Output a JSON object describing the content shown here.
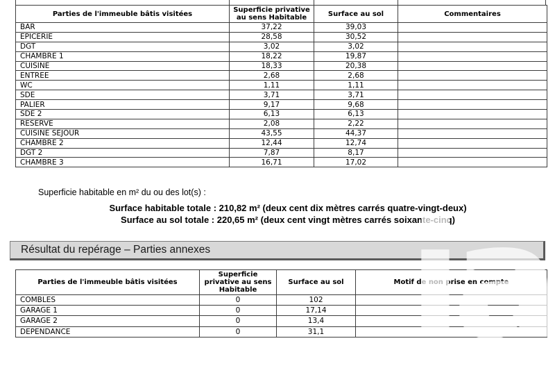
{
  "document": {
    "summary_intro": "Superficie habitable en m² du ou des lot(s) :",
    "total_line1": "Surface habitable totale : 210,82 m² (deux cent dix mètres carrés quatre-vingt-deux)",
    "total_line2": "Surface au sol totale : 220,65 m² (deux cent vingt mètres carrés soixante-cinq)",
    "section_title": "Résultat du repérage – Parties annexes"
  },
  "tables": {
    "main": {
      "headers": [
        "Parties de l'immeuble bâtis visitées",
        "Superficie privative au sens Habitable",
        "Surface au sol",
        "Commentaires"
      ],
      "rows": [
        [
          "BAR",
          "37,22",
          "39,03",
          ""
        ],
        [
          "EPICERIE",
          "28,58",
          "30,52",
          ""
        ],
        [
          "DGT",
          "3,02",
          "3,02",
          ""
        ],
        [
          "CHAMBRE 1",
          "18,22",
          "19,87",
          ""
        ],
        [
          "CUISINE",
          "18,33",
          "20,38",
          ""
        ],
        [
          "ENTREE",
          "2,68",
          "2,68",
          ""
        ],
        [
          "WC",
          "1,11",
          "1,11",
          ""
        ],
        [
          "SDE",
          "3,71",
          "3,71",
          ""
        ],
        [
          "PALIER",
          "9,17",
          "9,68",
          ""
        ],
        [
          "SDE 2",
          "6,13",
          "6,13",
          ""
        ],
        [
          "RESERVE",
          "2,08",
          "2,22",
          ""
        ],
        [
          "CUISINE SEJOUR",
          "43,55",
          "44,37",
          ""
        ],
        [
          "CHAMBRE 2",
          "12,44",
          "12,74",
          ""
        ],
        [
          "DGT 2",
          "7,87",
          "8,17",
          ""
        ],
        [
          "CHAMBRE 3",
          "16,71",
          "17,02",
          ""
        ]
      ]
    },
    "annexes": {
      "headers": [
        "Parties de l'immeuble bâtis visitées",
        "Superficie privative au sens Habitable",
        "Surface au sol",
        "Motif de non prise en compte"
      ],
      "rows": [
        [
          "COMBLES",
          "0",
          "102",
          ""
        ],
        [
          "GARAGE 1",
          "0",
          "17,14",
          ""
        ],
        [
          "GARAGE 2",
          "0",
          "13,4",
          ""
        ],
        [
          "DEPENDANCE",
          "0",
          "31,1",
          ""
        ]
      ]
    }
  },
  "watermark": {
    "text": "iad"
  },
  "colors": {
    "table_border": "#3c3c3c",
    "section_bar_bg": "#d8d8d8",
    "section_bar_border": "#5a5a5a",
    "text": "#000000",
    "watermark": "#ffffff"
  }
}
